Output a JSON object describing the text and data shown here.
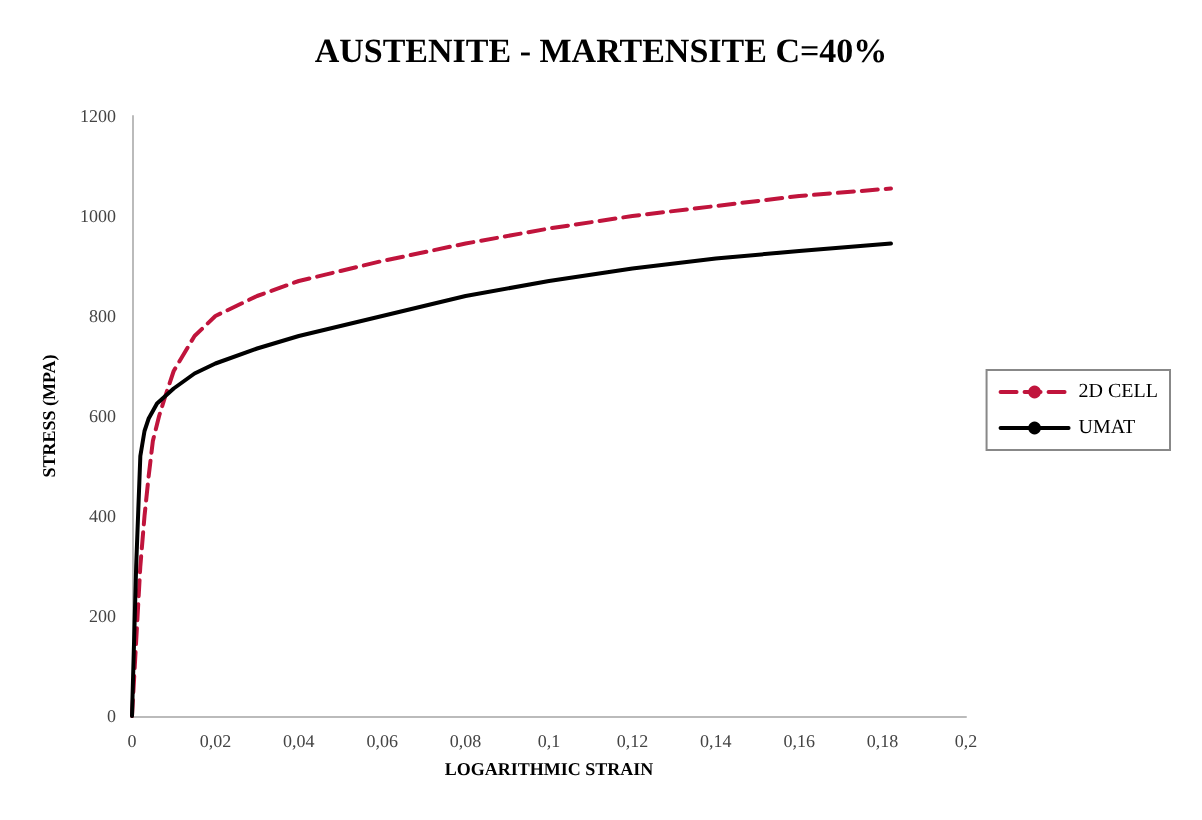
{
  "chart_data": {
    "type": "line",
    "title": "AUSTENITE - MARTENSITE C=40%",
    "xlabel": "LOGARITHMIC STRAIN",
    "ylabel": "STRESS (MPA)",
    "xlim": [
      0,
      0.2
    ],
    "ylim": [
      0,
      1200
    ],
    "xticks": [
      0,
      {
        "value": 0.02,
        "label": "0,02"
      },
      {
        "value": 0.04,
        "label": "0,04"
      },
      {
        "value": 0.06,
        "label": "0,06"
      },
      {
        "value": 0.08,
        "label": "0,08"
      },
      {
        "value": 0.1,
        "label": "0,1"
      },
      {
        "value": 0.12,
        "label": "0,12"
      },
      {
        "value": 0.14,
        "label": "0,14"
      },
      {
        "value": 0.16,
        "label": "0,16"
      },
      {
        "value": 0.18,
        "label": "0,18"
      },
      {
        "value": 0.2,
        "label": "0,2"
      }
    ],
    "yticks": [
      0,
      200,
      400,
      600,
      800,
      1000,
      1200
    ],
    "grid": false,
    "legend": "right",
    "marker": "none",
    "series": [
      {
        "name": "2D CELL",
        "color": "#c0143c",
        "line_style": "dashed",
        "x": [
          0,
          0.002,
          0.003,
          0.004,
          0.005,
          0.0065,
          0.008,
          0.01,
          0.015,
          0.02,
          0.025,
          0.03,
          0.04,
          0.05,
          0.06,
          0.08,
          0.1,
          0.12,
          0.14,
          0.16,
          0.182
        ],
        "values": [
          0,
          300,
          400,
          480,
          550,
          600,
          640,
          690,
          760,
          800,
          820,
          840,
          870,
          890,
          910,
          945,
          975,
          1000,
          1020,
          1040,
          1055
        ]
      },
      {
        "name": "UMAT",
        "color": "#000000",
        "line_style": "solid",
        "x": [
          0,
          0.001,
          0.002,
          0.003,
          0.004,
          0.006,
          0.008,
          0.01,
          0.015,
          0.02,
          0.03,
          0.04,
          0.05,
          0.06,
          0.08,
          0.1,
          0.12,
          0.14,
          0.16,
          0.182
        ],
        "values": [
          0,
          300,
          520,
          570,
          595,
          625,
          640,
          655,
          685,
          705,
          735,
          760,
          780,
          800,
          840,
          870,
          895,
          915,
          930,
          945
        ]
      }
    ]
  }
}
